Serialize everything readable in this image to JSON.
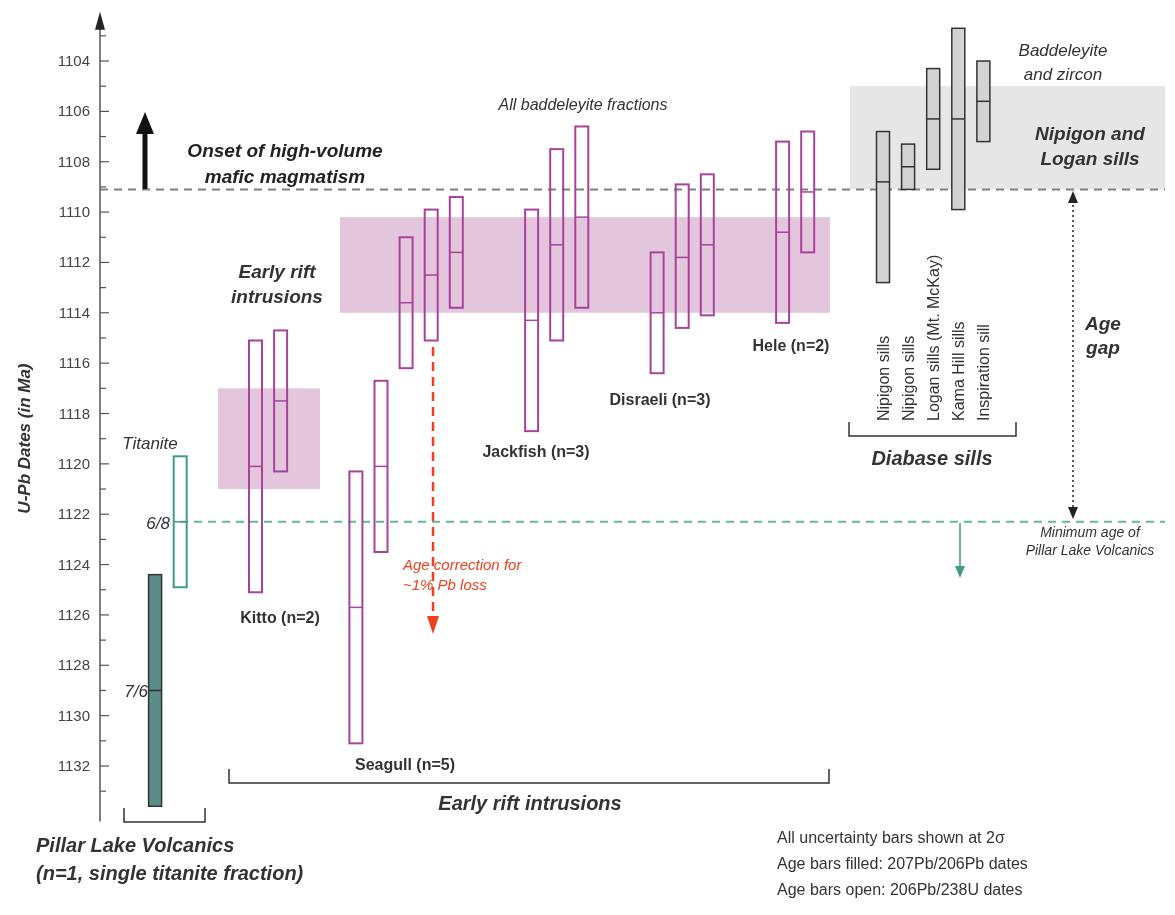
{
  "chart_data": {
    "type": "box",
    "ylabel": "U-Pb Dates (in Ma)",
    "categories": [
      null,
      null,
      null,
      null,
      null,
      null,
      null,
      null,
      null,
      null,
      null,
      null,
      null,
      null,
      null,
      null,
      null,
      null,
      null,
      null,
      null,
      null,
      null,
      null,
      null,
      null,
      null,
      null,
      null,
      null,
      "Nipigon sills",
      "Nipigon sills",
      "Logan sills (Mt. McKay)",
      "Kama Hill sills",
      "Inspiration sill",
      null,
      null,
      null,
      null,
      null,
      null,
      null
    ],
    "ylim": [
      1134.2,
      1102.2
    ],
    "yticks": [
      {
        "value": 1103,
        "label": null
      },
      1104,
      {
        "value": 1105,
        "label": null
      },
      1106,
      {
        "value": 1107,
        "label": null
      },
      1108,
      {
        "value": 1109,
        "label": null
      },
      1110,
      {
        "value": 1111,
        "label": null
      },
      1112,
      {
        "value": 1113,
        "label": null
      },
      1114,
      {
        "value": 1115,
        "label": null
      },
      1116,
      {
        "value": 1117,
        "label": null
      },
      1118,
      {
        "value": 1119,
        "label": null
      },
      1120,
      {
        "value": 1121,
        "label": null
      },
      1122,
      {
        "value": 1123,
        "label": null
      },
      1124,
      {
        "value": 1125,
        "label": null
      },
      1126,
      {
        "value": 1127,
        "label": null
      },
      1128,
      {
        "value": 1129,
        "label": null
      },
      1130,
      {
        "value": 1131,
        "label": null
      },
      1132,
      {
        "value": 1133,
        "label": null
      }
    ],
    "series": [
      {
        "colors": [
          null,
          "#5b8c88",
          null,
          null,
          null,
          null,
          null,
          null,
          null,
          null,
          null,
          null,
          null,
          null,
          null,
          null,
          null,
          null,
          null,
          null,
          null,
          null,
          null,
          null,
          null,
          null,
          null,
          null,
          null,
          null,
          null,
          null,
          null,
          null,
          null,
          null,
          null,
          null,
          null,
          null,
          null,
          null
        ],
        "boxes": [
          null,
          {
            "low": 1124.4,
            "q1": 1124.4,
            "median": 1129.0,
            "q3": 1133.6,
            "high": 1133.6
          },
          null,
          null,
          null,
          null,
          null,
          null,
          null,
          null,
          null,
          null,
          null,
          null,
          null,
          null,
          null,
          null,
          null,
          null,
          null,
          null,
          null,
          null,
          null,
          null,
          null,
          null,
          null,
          null,
          null,
          null,
          null,
          null,
          null,
          null,
          null,
          null,
          null,
          null,
          null,
          null
        ]
      },
      {
        "color": "#3f9c86",
        "boxes": [
          null,
          null,
          {
            "low": 1119.7,
            "q1": 1119.7,
            "median": 1122.3,
            "q3": 1124.9,
            "high": 1124.9
          },
          null,
          null,
          null,
          null,
          null,
          null,
          null,
          null,
          null,
          null,
          null,
          null,
          null,
          null,
          null,
          null,
          null,
          null,
          null,
          null,
          null,
          null,
          null,
          null,
          null,
          null,
          null,
          null,
          null,
          null,
          null,
          null,
          null,
          null,
          null,
          null,
          null,
          null,
          null
        ]
      },
      {
        "color": "#a8439c",
        "boxes": [
          null,
          null,
          null,
          null,
          null,
          {
            "low": 1115.1,
            "q1": 1115.1,
            "median": 1120.1,
            "q3": 1125.1,
            "high": 1125.1
          },
          {
            "low": 1114.7,
            "q1": 1114.7,
            "median": 1117.5,
            "q3": 1120.3,
            "high": 1120.3
          },
          null,
          null,
          {
            "low": 1120.3,
            "q1": 1120.3,
            "median": 1125.7,
            "q3": 1131.1,
            "high": 1131.1
          },
          {
            "low": 1116.7,
            "q1": 1116.7,
            "median": 1120.1,
            "q3": 1123.5,
            "high": 1123.5
          },
          {
            "low": 1111.0,
            "q1": 1111.0,
            "median": 1113.6,
            "q3": 1116.2,
            "high": 1116.2
          },
          {
            "low": 1109.9,
            "q1": 1109.9,
            "median": 1112.5,
            "q3": 1115.1,
            "high": 1115.1
          },
          {
            "low": 1109.4,
            "q1": 1109.4,
            "median": 1111.6,
            "q3": 1113.8,
            "high": 1113.8
          },
          null,
          null,
          {
            "low": 1109.9,
            "q1": 1109.9,
            "median": 1114.3,
            "q3": 1118.7,
            "high": 1118.7
          },
          {
            "low": 1107.5,
            "q1": 1107.5,
            "median": 1111.3,
            "q3": 1115.1,
            "high": 1115.1
          },
          {
            "low": 1106.6,
            "q1": 1106.6,
            "median": 1110.2,
            "q3": 1113.8,
            "high": 1113.8
          },
          null,
          null,
          {
            "low": 1111.6,
            "q1": 1111.6,
            "median": 1114.0,
            "q3": 1116.4,
            "high": 1116.4
          },
          {
            "low": 1108.9,
            "q1": 1108.9,
            "median": 1111.8,
            "q3": 1114.6,
            "high": 1114.6
          },
          {
            "low": 1108.5,
            "q1": 1108.5,
            "median": 1111.3,
            "q3": 1114.1,
            "high": 1114.1
          },
          null,
          null,
          {
            "low": 1107.2,
            "q1": 1107.2,
            "median": 1110.8,
            "q3": 1114.4,
            "high": 1114.4
          },
          {
            "low": 1106.8,
            "q1": 1106.8,
            "median": 1109.2,
            "q3": 1111.6,
            "high": 1111.6
          },
          null,
          null,
          null,
          null,
          null,
          null,
          null,
          null,
          null,
          null,
          null,
          null,
          null,
          null
        ]
      },
      {
        "colors": [
          null,
          null,
          null,
          null,
          null,
          null,
          null,
          null,
          null,
          null,
          null,
          null,
          null,
          null,
          null,
          null,
          null,
          null,
          null,
          null,
          null,
          null,
          null,
          null,
          null,
          null,
          null,
          null,
          null,
          null,
          "#d3d3d3",
          "#d3d3d3",
          "#d3d3d3",
          "#d3d3d3",
          "#d3d3d3",
          null,
          null,
          null,
          null,
          null,
          null,
          null
        ],
        "boxes": [
          null,
          null,
          null,
          null,
          null,
          null,
          null,
          null,
          null,
          null,
          null,
          null,
          null,
          null,
          null,
          null,
          null,
          null,
          null,
          null,
          null,
          null,
          null,
          null,
          null,
          null,
          null,
          null,
          null,
          null,
          {
            "low": 1106.8,
            "q1": 1106.8,
            "median": 1108.8,
            "q3": 1112.8,
            "high": 1112.8
          },
          {
            "low": 1107.3,
            "q1": 1107.3,
            "median": 1108.2,
            "q3": 1109.1,
            "high": 1109.1
          },
          {
            "low": 1104.3,
            "q1": 1104.3,
            "median": 1106.3,
            "q3": 1108.3,
            "high": 1108.3
          },
          {
            "low": 1102.7,
            "q1": 1102.7,
            "median": 1106.3,
            "q3": 1109.9,
            "high": 1109.9
          },
          {
            "low": 1104.0,
            "q1": 1104.0,
            "median": 1105.6,
            "q3": 1107.2,
            "high": 1107.2
          },
          null,
          null,
          null,
          null,
          null,
          null,
          null
        ]
      }
    ],
    "bands": [
      {
        "axis": "y",
        "from": 1117.0,
        "to": 1121.0,
        "color": "#e3c6dc"
      },
      {
        "axis": "y",
        "from": 1110.2,
        "to": 1114.0,
        "label": "Early rift intrusions",
        "color": "#e3c6dc"
      },
      {
        "axis": "y",
        "from": 1105.0,
        "to": 1109.1,
        "label": "Nipigon and Logan sills",
        "color": "#e6e6e6"
      }
    ],
    "ref_lines": [
      {
        "axis": "y",
        "value": 1109.1,
        "label": "Onset of high-volume mafic magmatism",
        "color": "#808080",
        "line_style": "dashed"
      },
      {
        "axis": "y",
        "value": 1122.3,
        "label": "Minimum age of Pillar Lake Volcanics",
        "color": "#5fb8a0",
        "line_style": "dashed"
      }
    ],
    "annotations": [
      "Titanite",
      "6/8",
      "7/6",
      "Kitto (n=2)",
      "Seagull (n=5)",
      "Jackfish (n=3)",
      "Disraeli (n=3)",
      "Hele (n=2)",
      "All baddeleyite fractions",
      "Baddeleyite and zircon",
      "Age correction for ~1% Pb loss",
      "Early rift intrusions",
      "Diabase sills",
      "Age gap",
      "Pillar Lake Volcanics (n=1, single titanite fraction)",
      "All uncertainty bars shown at 2σ",
      "Age bars filled: 207Pb/206Pb dates",
      "Age bars open: 206Pb/238U dates"
    ]
  }
}
